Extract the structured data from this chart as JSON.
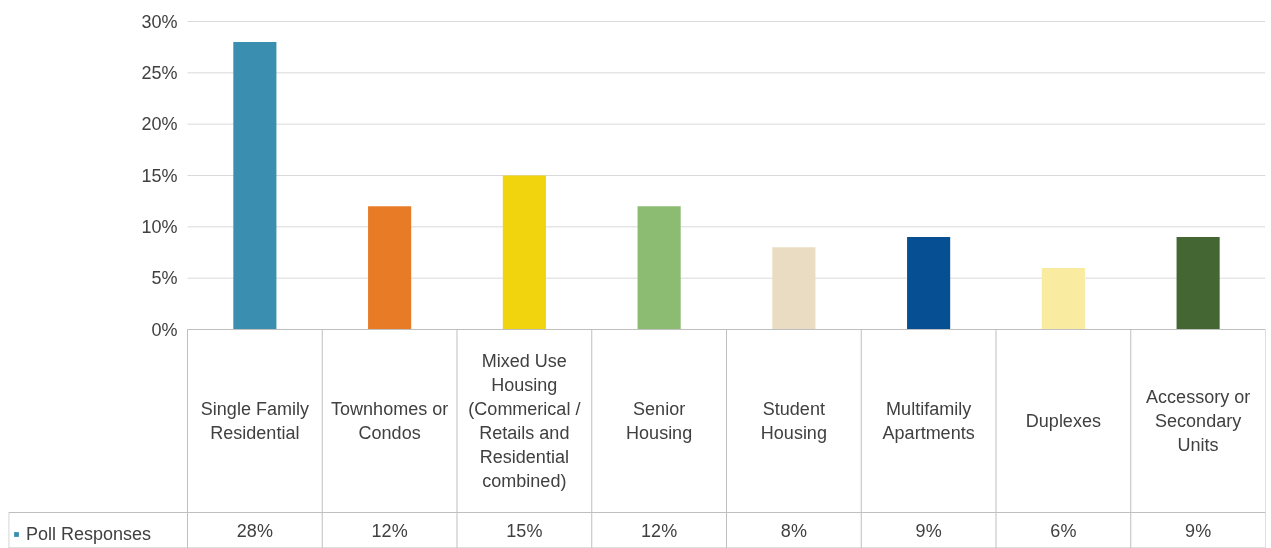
{
  "chart_data": {
    "type": "bar",
    "categories": [
      "Single Family Residential",
      "Townhomes or Condos",
      "Mixed Use Housing (Commerical / Retails and Residential combined)",
      "Senior Housing",
      "Student Housing",
      "Multifamily Apartments",
      "Duplexes",
      "Accessory or Secondary Units"
    ],
    "series": [
      {
        "name": "Poll Responses",
        "color": "#3a8fb0",
        "colors": [
          "#3a8fb0",
          "#e87b26",
          "#f2d40e",
          "#8cbb72",
          "#eadcc2",
          "#064f92",
          "#f9eba0",
          "#436632"
        ],
        "values": [
          28,
          12,
          15,
          12,
          8,
          9,
          6,
          9
        ],
        "value_labels": [
          "28%",
          "12%",
          "15%",
          "12%",
          "8%",
          "9%",
          "6%",
          "9%"
        ]
      }
    ],
    "ylim": [
      0,
      30
    ],
    "yticks": [
      {
        "value": 0,
        "label": "0%"
      },
      {
        "value": 5,
        "label": "5%"
      },
      {
        "value": 10,
        "label": "10%"
      },
      {
        "value": 15,
        "label": "15%"
      },
      {
        "value": 20,
        "label": "20%"
      },
      {
        "value": 25,
        "label": "25%"
      },
      {
        "value": 30,
        "label": "30%"
      }
    ],
    "grid": "y",
    "legend": "bottom"
  }
}
